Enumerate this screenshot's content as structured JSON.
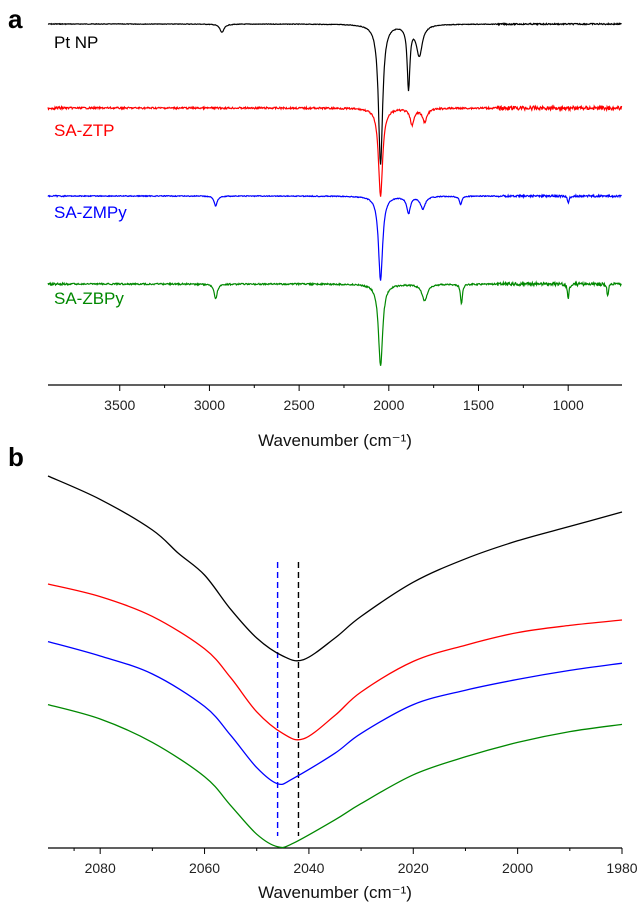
{
  "chart_data": [
    {
      "panel_label": "a",
      "type": "line",
      "xlabel": "Wavenumber (cm⁻¹)",
      "x_reversed": true,
      "xlim": [
        3900,
        700
      ],
      "xticks": [
        3500,
        3000,
        2500,
        2000,
        1500,
        1000
      ],
      "y_axis_visible": false,
      "grid": false,
      "series": [
        {
          "name": "Pt NP",
          "color": "#000000",
          "offset": 0,
          "peaks": [
            {
              "x": 2046,
              "depth": 1.0,
              "width": 14
            },
            {
              "x": 1890,
              "depth": 0.45,
              "width": 9
            },
            {
              "x": 1830,
              "depth": 0.22,
              "width": 20
            },
            {
              "x": 2930,
              "depth": 0.06,
              "width": 14
            }
          ],
          "noise": 0.02
        },
        {
          "name": "SA-ZTP",
          "color": "#ff0000",
          "offset": 1,
          "peaks": [
            {
              "x": 2046,
              "depth": 1.0,
              "width": 14
            },
            {
              "x": 1870,
              "depth": 0.18,
              "width": 14
            },
            {
              "x": 1800,
              "depth": 0.15,
              "width": 16
            }
          ],
          "noise": 0.06
        },
        {
          "name": "SA-ZMPy",
          "color": "#0000ff",
          "offset": 2,
          "peaks": [
            {
              "x": 2046,
              "depth": 1.0,
              "width": 14
            },
            {
              "x": 2965,
              "depth": 0.12,
              "width": 10
            },
            {
              "x": 1890,
              "depth": 0.2,
              "width": 12
            },
            {
              "x": 1810,
              "depth": 0.15,
              "width": 16
            },
            {
              "x": 1600,
              "depth": 0.1,
              "width": 8
            },
            {
              "x": 1000,
              "depth": 0.08,
              "width": 6
            }
          ],
          "noise": 0.03
        },
        {
          "name": "SA-ZBPy",
          "color": "#008800",
          "offset": 3,
          "peaks": [
            {
              "x": 2046,
              "depth": 1.0,
              "width": 14
            },
            {
              "x": 2965,
              "depth": 0.18,
              "width": 10
            },
            {
              "x": 1800,
              "depth": 0.2,
              "width": 18
            },
            {
              "x": 1595,
              "depth": 0.25,
              "width": 6
            },
            {
              "x": 1000,
              "depth": 0.18,
              "width": 5
            },
            {
              "x": 780,
              "depth": 0.15,
              "width": 5
            }
          ],
          "noise": 0.05
        }
      ]
    },
    {
      "panel_label": "b",
      "type": "line",
      "xlabel": "Wavenumber (cm⁻¹)",
      "x_reversed": true,
      "xlim": [
        2090,
        1980
      ],
      "xticks": [
        2080,
        2060,
        2040,
        2020,
        2000,
        1980
      ],
      "y_axis_visible": false,
      "grid": false,
      "reference_lines": [
        {
          "x": 2046,
          "color": "#0000ff",
          "style": "dashed"
        },
        {
          "x": 2042,
          "color": "#000000",
          "style": "dashed"
        }
      ],
      "series": [
        {
          "name": "",
          "color": "#000000",
          "minimum_x": 2041,
          "points": [
            [
              2090,
              0.0
            ],
            [
              2080,
              0.13
            ],
            [
              2070,
              0.3
            ],
            [
              2065,
              0.43
            ],
            [
              2060,
              0.55
            ],
            [
              2055,
              0.74
            ],
            [
              2050,
              0.9
            ],
            [
              2045,
              1.0
            ],
            [
              2041,
              1.02
            ],
            [
              2035,
              0.9
            ],
            [
              2030,
              0.78
            ],
            [
              2020,
              0.59
            ],
            [
              2010,
              0.46
            ],
            [
              2000,
              0.36
            ],
            [
              1990,
              0.28
            ],
            [
              1980,
              0.2
            ]
          ]
        },
        {
          "name": "",
          "color": "#ff0000",
          "minimum_x": 2041,
          "points": [
            [
              2090,
              0.6
            ],
            [
              2080,
              0.67
            ],
            [
              2070,
              0.78
            ],
            [
              2060,
              0.96
            ],
            [
              2055,
              1.12
            ],
            [
              2050,
              1.31
            ],
            [
              2045,
              1.43
            ],
            [
              2041,
              1.46
            ],
            [
              2035,
              1.33
            ],
            [
              2030,
              1.2
            ],
            [
              2020,
              1.03
            ],
            [
              2010,
              0.94
            ],
            [
              2000,
              0.87
            ],
            [
              1990,
              0.83
            ],
            [
              1980,
              0.8
            ]
          ]
        },
        {
          "name": "",
          "color": "#0000ff",
          "minimum_x": 2046,
          "points": [
            [
              2090,
              0.92
            ],
            [
              2080,
              1.0
            ],
            [
              2070,
              1.1
            ],
            [
              2060,
              1.28
            ],
            [
              2055,
              1.44
            ],
            [
              2050,
              1.62
            ],
            [
              2046,
              1.71
            ],
            [
              2043,
              1.68
            ],
            [
              2035,
              1.54
            ],
            [
              2030,
              1.43
            ],
            [
              2020,
              1.27
            ],
            [
              2010,
              1.19
            ],
            [
              2000,
              1.13
            ],
            [
              1990,
              1.08
            ],
            [
              1980,
              1.04
            ]
          ]
        },
        {
          "name": "",
          "color": "#008800",
          "minimum_x": 2046,
          "points": [
            [
              2090,
              1.27
            ],
            [
              2080,
              1.35
            ],
            [
              2070,
              1.48
            ],
            [
              2060,
              1.67
            ],
            [
              2055,
              1.83
            ],
            [
              2050,
              1.99
            ],
            [
              2046,
              2.06
            ],
            [
              2043,
              2.04
            ],
            [
              2035,
              1.91
            ],
            [
              2030,
              1.82
            ],
            [
              2020,
              1.66
            ],
            [
              2010,
              1.56
            ],
            [
              2000,
              1.48
            ],
            [
              1990,
              1.42
            ],
            [
              1980,
              1.38
            ]
          ]
        }
      ]
    }
  ]
}
